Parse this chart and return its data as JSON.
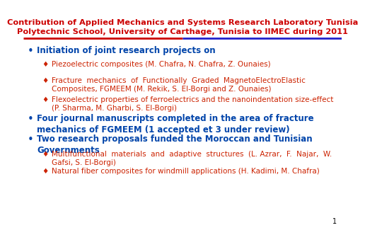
{
  "title_line1": "Contribution of Applied Mechanics and Systems Research Laboratory Tunisia",
  "title_line2": "Polytechnic School, University of Carthage, Tunisia to IIMEC during 2011",
  "title_color": "#cc0000",
  "title_fontsize": 8.2,
  "separator_color_left": "#cc0000",
  "separator_color_right": "#2222cc",
  "bullet_color_main": "#0044aa",
  "bullet_color_sub": "#cc2200",
  "main_bullet_fontsize": 8.5,
  "sub_bullet_fontsize": 7.5,
  "page_number": "1",
  "bullets": [
    {
      "level": 0,
      "text": "Initiation of joint research projects on",
      "bold": true,
      "lines": 1
    },
    {
      "level": 1,
      "text": "Piezoelectric composites (M. Chafra, N. Chafra, Z. Ounaies)",
      "bold": false,
      "lines": 1
    },
    {
      "level": 1,
      "text": "Fracture  mechanics  of  Functionally  Graded  MagnetoElectroElastic\nComposites, FGMEEM (M. Rekik, S. El-Borgi and Z. Ounaies)",
      "bold": false,
      "lines": 2
    },
    {
      "level": 1,
      "text": "Flexoelectric properties of ferroelectrics and the nanoindentation size-effect\n(P. Sharma, M. Gharbi, S. El-Borgi)",
      "bold": false,
      "lines": 2
    },
    {
      "level": 0,
      "text": "Four journal manuscripts completed in the area of fracture\nmechanics of FGMEEM (1 accepted et 3 under review)",
      "bold": true,
      "lines": 2
    },
    {
      "level": 0,
      "text": "Two research proposals funded the Moroccan and Tunisian\nGovernments",
      "bold": true,
      "lines": 2
    },
    {
      "level": 1,
      "text": "Multifunctional  materials  and  adaptive  structures  (L. Azrar,  F.  Najar,  W.\nGafsi, S. El-Borgi)",
      "bold": false,
      "lines": 2
    },
    {
      "level": 1,
      "text": "Natural fiber composites for windmill applications (H. Kadimi, M. Chafra)",
      "bold": false,
      "lines": 1
    }
  ]
}
